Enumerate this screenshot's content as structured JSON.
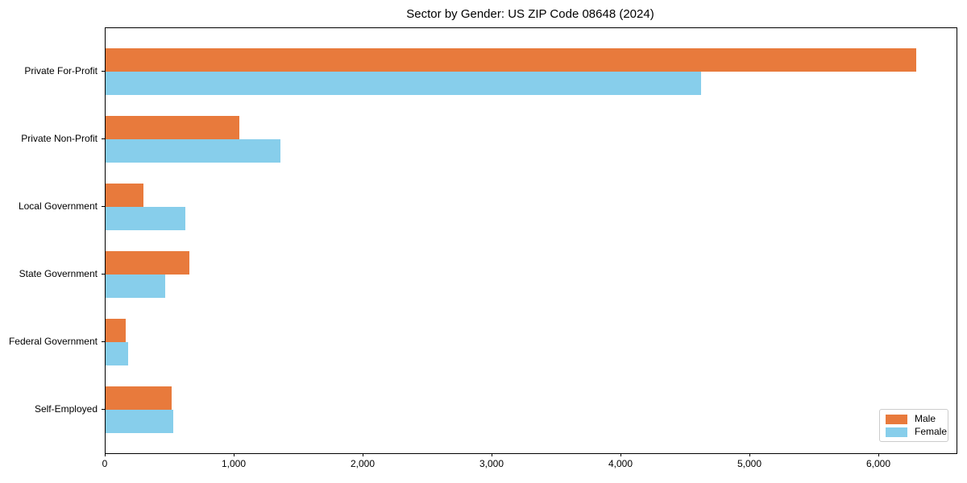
{
  "chart_data": {
    "type": "bar",
    "orientation": "horizontal",
    "title": "Sector by Gender: US ZIP Code 08648 (2024)",
    "xlabel": "",
    "ylabel": "",
    "categories": [
      "Private For-Profit",
      "Private Non-Profit",
      "Local Government",
      "State Government",
      "Federal Government",
      "Self-Employed"
    ],
    "series": [
      {
        "name": "Male",
        "color": "#E87A3C",
        "values": [
          6286,
          1036,
          292,
          652,
          155,
          511
        ]
      },
      {
        "name": "Female",
        "color": "#87CEEB",
        "values": [
          4621,
          1354,
          619,
          464,
          175,
          527
        ]
      }
    ],
    "xlim": [
      0,
      6600
    ],
    "xticks": [
      0,
      1000,
      2000,
      3000,
      4000,
      5000,
      6000
    ],
    "xtick_labels": [
      "0",
      "1,000",
      "2,000",
      "3,000",
      "4,000",
      "5,000",
      "6,000"
    ],
    "legend_position": "lower right",
    "grid": false,
    "colors": {
      "axis": "#000000",
      "background": "#ffffff",
      "legend_border": "#cccccc"
    }
  }
}
